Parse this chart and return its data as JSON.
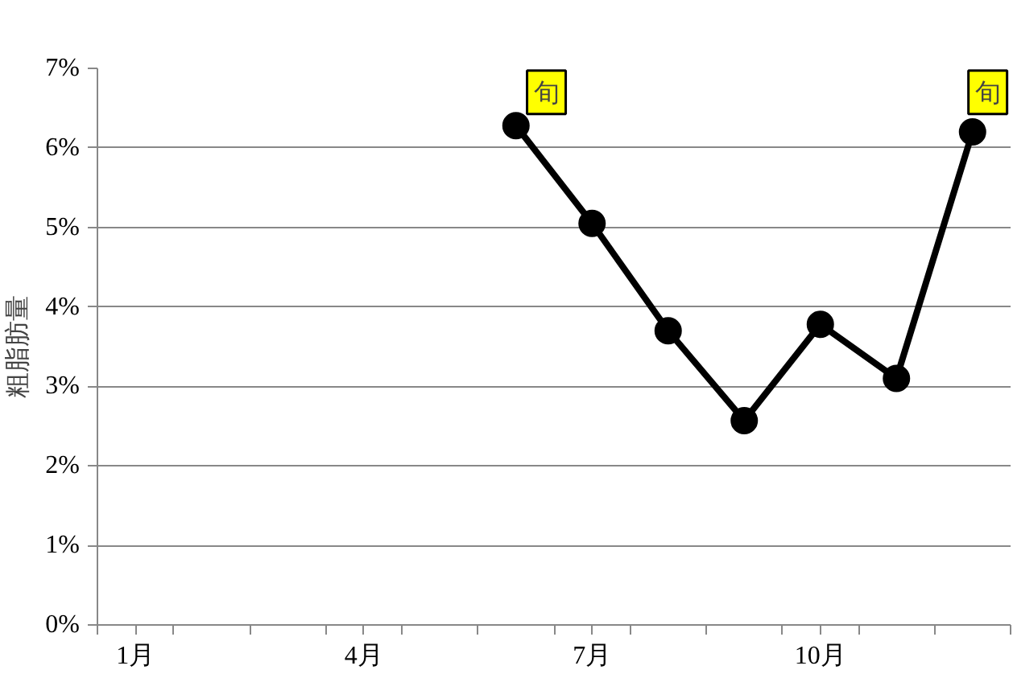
{
  "chart_data": {
    "type": "line",
    "ylabel": "粗脂肪量",
    "x": [
      6,
      7,
      8,
      9,
      10,
      11,
      12
    ],
    "values": [
      6.28,
      5.05,
      3.7,
      2.57,
      3.78,
      3.1,
      6.2
    ],
    "color": "#000000",
    "marker": "circle",
    "line_style": "solid",
    "grid": "y",
    "xlim": [
      0.5,
      12.5
    ],
    "xticks": [
      {
        "value": 1,
        "label": "1月"
      },
      {
        "value": 4,
        "label": "4月"
      },
      {
        "value": 7,
        "label": "7月"
      },
      {
        "value": 10,
        "label": "10月"
      },
      {
        "value": 0.5,
        "label": null
      },
      {
        "value": 1.5,
        "label": null
      },
      {
        "value": 2.5,
        "label": null
      },
      {
        "value": 3.5,
        "label": null
      },
      {
        "value": 4.5,
        "label": null
      },
      {
        "value": 5.5,
        "label": null
      },
      {
        "value": 6.5,
        "label": null
      },
      {
        "value": 7.5,
        "label": null
      },
      {
        "value": 8.5,
        "label": null
      },
      {
        "value": 9.5,
        "label": null
      },
      {
        "value": 10.5,
        "label": null
      },
      {
        "value": 11.5,
        "label": null
      },
      {
        "value": 12.5,
        "label": null
      }
    ],
    "ylim": [
      0,
      7
    ],
    "yticks": [
      {
        "value": 0,
        "label": "0%"
      },
      {
        "value": 1,
        "label": "1%"
      },
      {
        "value": 2,
        "label": "2%"
      },
      {
        "value": 3,
        "label": "3%"
      },
      {
        "value": 4,
        "label": "4%"
      },
      {
        "value": 5,
        "label": "5%"
      },
      {
        "value": 6,
        "label": "6%"
      },
      {
        "value": 7,
        "label": "7%"
      }
    ],
    "annotations": [
      {
        "text": "旬",
        "x": 6.4,
        "y": 6.7
      },
      {
        "text": "旬",
        "x": 12.2,
        "y": 6.7
      }
    ]
  }
}
